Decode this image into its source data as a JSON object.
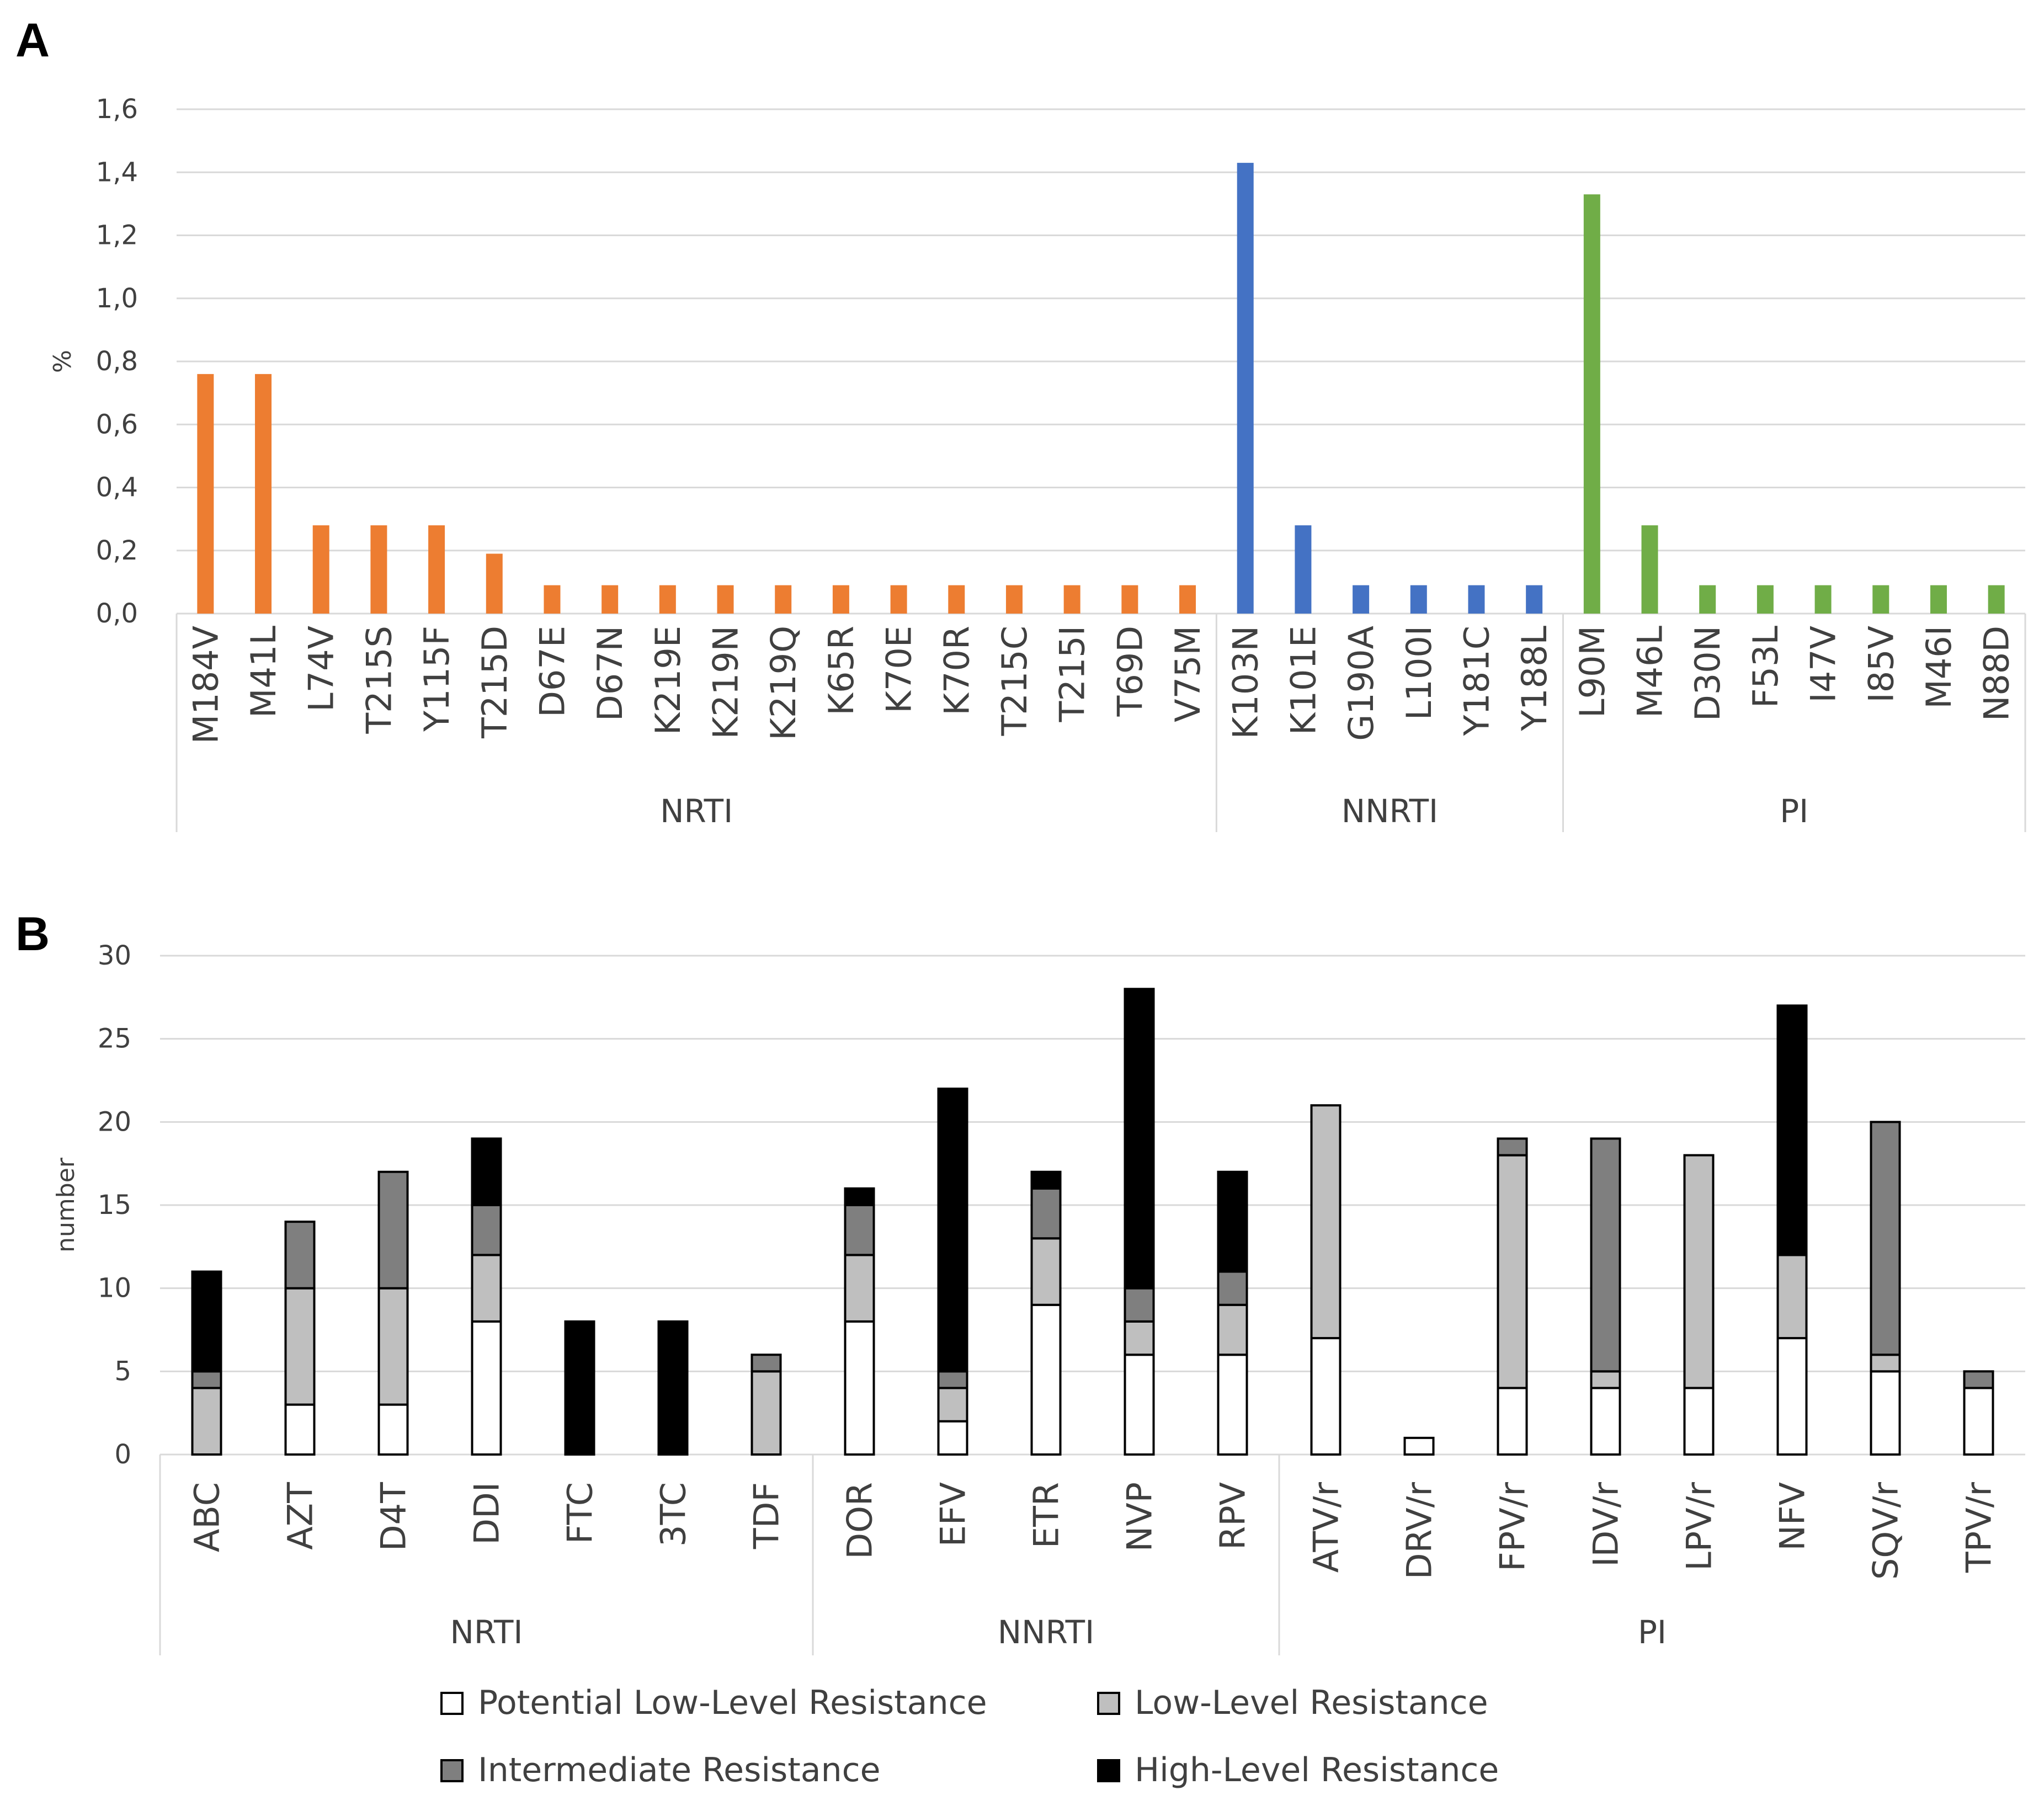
{
  "chart_data": [
    {
      "type": "bar",
      "panel": "A",
      "ylabel": "%",
      "ylim": [
        0,
        1.6
      ],
      "yticks": [
        "0,0",
        "0,2",
        "0,4",
        "0,6",
        "0,8",
        "1,0",
        "1,2",
        "1,4",
        "1,6"
      ],
      "grid": true,
      "categories": [
        "M184V",
        "M41L",
        "L74V",
        "T215S",
        "Y115F",
        "T215D",
        "D67E",
        "D67N",
        "K219E",
        "K219N",
        "K219Q",
        "K65R",
        "K70E",
        "K70R",
        "T215C",
        "T215I",
        "T69D",
        "V75M",
        "K103N",
        "K101E",
        "G190A",
        "L100I",
        "Y181C",
        "Y188L",
        "L90M",
        "M46L",
        "D30N",
        "F53L",
        "I47V",
        "I85V",
        "M46I",
        "N88D"
      ],
      "values": [
        0.76,
        0.76,
        0.28,
        0.28,
        0.28,
        0.19,
        0.09,
        0.09,
        0.09,
        0.09,
        0.09,
        0.09,
        0.09,
        0.09,
        0.09,
        0.09,
        0.09,
        0.09,
        1.43,
        0.28,
        0.09,
        0.09,
        0.09,
        0.09,
        1.33,
        0.28,
        0.09,
        0.09,
        0.09,
        0.09,
        0.09,
        0.09
      ],
      "groups": [
        {
          "name": "NRTI",
          "count": 18,
          "color": "#ed7d31"
        },
        {
          "name": "NNRTI",
          "count": 6,
          "color": "#4472c4"
        },
        {
          "name": "PI",
          "count": 8,
          "color": "#70ad47"
        }
      ]
    },
    {
      "type": "bar",
      "stacked": true,
      "panel": "B",
      "ylabel": "number",
      "ylim": [
        0,
        30
      ],
      "yticks": [
        "0",
        "5",
        "10",
        "15",
        "20",
        "25",
        "30"
      ],
      "grid": true,
      "categories": [
        "ABC",
        "AZT",
        "D4T",
        "DDI",
        "FTC",
        "3TC",
        "TDF",
        "DOR",
        "EFV",
        "ETR",
        "NVP",
        "RPV",
        "ATV/r",
        "DRV/r",
        "FPV/r",
        "IDV/r",
        "LPV/r",
        "NFV",
        "SQV/r",
        "TPV/r"
      ],
      "groups": [
        {
          "name": "NRTI",
          "count": 7
        },
        {
          "name": "NNRTI",
          "count": 5
        },
        {
          "name": "PI",
          "count": 8
        }
      ],
      "series": [
        {
          "name": "Potential Low-Level Resistance",
          "color": "#ffffff",
          "values": [
            0,
            3,
            3,
            8,
            0,
            0,
            0,
            8,
            2,
            9,
            6,
            6,
            7,
            1,
            4,
            4,
            4,
            7,
            5,
            4
          ]
        },
        {
          "name": "Low-Level Resistance",
          "color": "#bfbfbf",
          "values": [
            4,
            7,
            7,
            4,
            0,
            0,
            5,
            4,
            2,
            4,
            2,
            3,
            14,
            0,
            14,
            1,
            14,
            5,
            1,
            0
          ]
        },
        {
          "name": "Intermediate Resistance",
          "color": "#7f7f7f",
          "values": [
            1,
            4,
            7,
            3,
            0,
            0,
            1,
            3,
            1,
            3,
            2,
            2,
            0,
            0,
            1,
            14,
            0,
            0,
            14,
            1
          ]
        },
        {
          "name": "High-Level Resistance",
          "color": "#000000",
          "values": [
            6,
            0,
            0,
            4,
            8,
            8,
            0,
            1,
            17,
            1,
            18,
            6,
            0,
            0,
            0,
            0,
            0,
            15,
            0,
            0
          ]
        }
      ],
      "legend_position": "bottom"
    }
  ]
}
